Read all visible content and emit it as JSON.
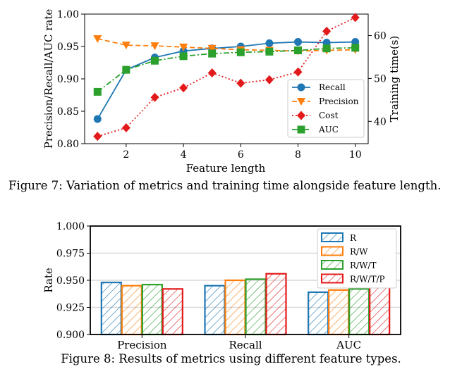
{
  "figures": {
    "fig7_caption": "Figure 7: Variation of metrics and training time alongside feature length.",
    "fig8_caption": "Figure 8: Results of metrics using different feature types."
  },
  "chart_data": [
    {
      "type": "line",
      "xlabel": "Feature length",
      "ylabel": "Precision/Recall/AUC rate",
      "y2label": "Training time(s)",
      "x": [
        1,
        2,
        3,
        4,
        5,
        6,
        7,
        8,
        9,
        10
      ],
      "xticks": [
        "2",
        "4",
        "6",
        "8",
        "10"
      ],
      "xtick_values": [
        2,
        4,
        6,
        8,
        10
      ],
      "ylim": [
        0.8,
        1.0
      ],
      "yticks": [
        "0.80",
        "0.85",
        "0.90",
        "0.95",
        "1.00"
      ],
      "ytick_values": [
        0.8,
        0.85,
        0.9,
        0.95,
        1.0
      ],
      "y2lim": [
        34.8,
        65.0
      ],
      "y2ticks": [
        "40",
        "50",
        "60"
      ],
      "y2tick_values": [
        40,
        50,
        60
      ],
      "grid": false,
      "legend_position": "lower-right",
      "series": [
        {
          "name": "Recall",
          "axis": "left",
          "color": "#1f77b4",
          "marker": "circle",
          "line": "solid",
          "values": [
            0.838,
            0.914,
            0.933,
            0.943,
            0.947,
            0.95,
            0.955,
            0.957,
            0.956,
            0.957
          ]
        },
        {
          "name": "Precision",
          "axis": "left",
          "color": "#ff7f0e",
          "marker": "triangle-down",
          "line": "dashed",
          "values": [
            0.962,
            0.952,
            0.951,
            0.949,
            0.947,
            0.945,
            0.944,
            0.943,
            0.944,
            0.945
          ]
        },
        {
          "name": "Cost",
          "axis": "right",
          "color": "#e31a1c",
          "marker": "diamond",
          "line": "dotted",
          "values": [
            36.5,
            38.5,
            45.6,
            47.8,
            51.3,
            48.9,
            49.7,
            51.5,
            61.0,
            64.2
          ]
        },
        {
          "name": "AUC",
          "axis": "left",
          "color": "#2ca02c",
          "marker": "square",
          "line": "dashdot",
          "values": [
            0.88,
            0.914,
            0.928,
            0.935,
            0.939,
            0.941,
            0.942,
            0.944,
            0.947,
            0.948
          ]
        }
      ]
    },
    {
      "type": "bar",
      "ylabel": "Rate",
      "categories": [
        "Precision",
        "Recall",
        "AUC"
      ],
      "ylim": [
        0.9,
        1.0
      ],
      "yticks": [
        "0.900",
        "0.925",
        "0.950",
        "0.975",
        "1.000"
      ],
      "ytick_values": [
        0.9,
        0.925,
        0.95,
        0.975,
        1.0
      ],
      "grid": true,
      "legend_position": "top-right",
      "series": [
        {
          "name": "R",
          "color": "#1f77b4",
          "values": [
            0.948,
            0.945,
            0.939
          ]
        },
        {
          "name": "R/W",
          "color": "#ff7f0e",
          "values": [
            0.945,
            0.95,
            0.941
          ]
        },
        {
          "name": "R/W/T",
          "color": "#2ca02c",
          "values": [
            0.946,
            0.951,
            0.942
          ]
        },
        {
          "name": "R/W/T/P",
          "color": "#e31a1c",
          "values": [
            0.942,
            0.956,
            0.945
          ]
        }
      ]
    }
  ]
}
